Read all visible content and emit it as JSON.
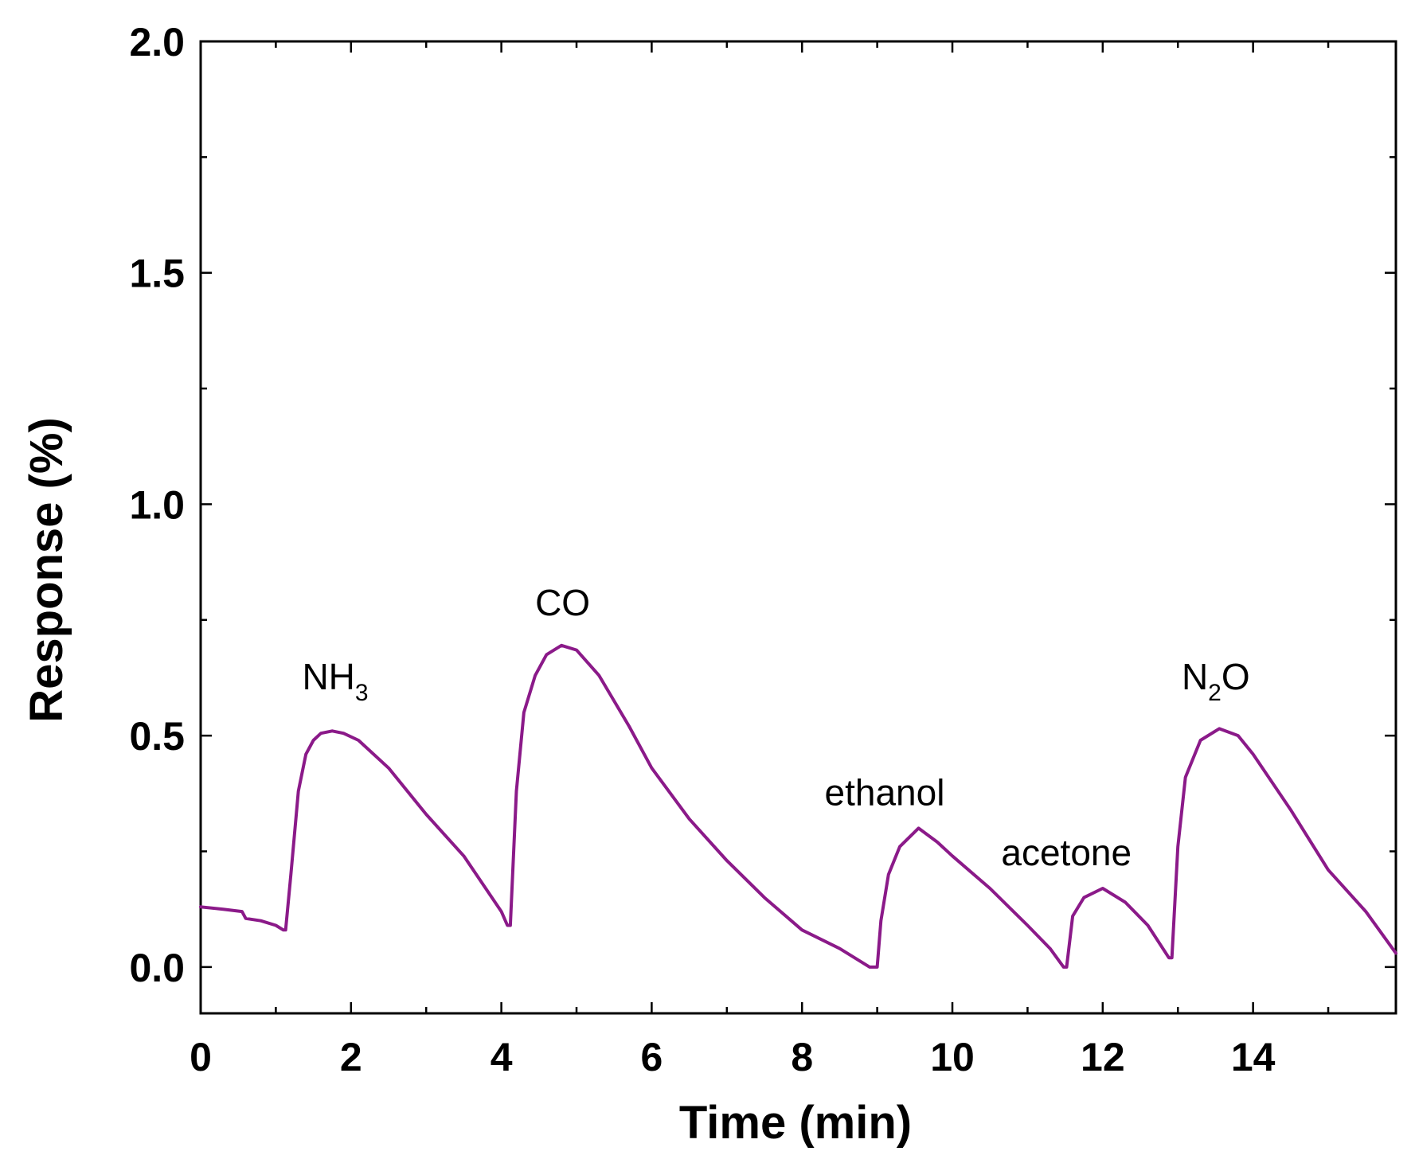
{
  "chart_data": {
    "type": "line",
    "title": "",
    "xlabel": "Time (min)",
    "ylabel": "Response (%)",
    "xlim": [
      0,
      15.9
    ],
    "ylim": [
      -0.1,
      2.0
    ],
    "xticks": [
      0,
      2,
      4,
      6,
      8,
      10,
      12,
      14
    ],
    "xtick_labels": [
      "0",
      "2",
      "4",
      "6",
      "8",
      "10",
      "12",
      "14"
    ],
    "yticks": [
      0.0,
      0.5,
      1.0,
      1.5,
      2.0
    ],
    "ytick_labels": [
      "0.0",
      "0.5",
      "1.0",
      "1.5",
      "2.0"
    ],
    "grid": false,
    "series": [
      {
        "name": "Response",
        "color": "#8B1A89",
        "x": [
          0,
          0.3,
          0.55,
          0.6,
          0.8,
          1.0,
          1.1,
          1.13,
          1.2,
          1.3,
          1.4,
          1.5,
          1.6,
          1.75,
          1.9,
          2.1,
          2.5,
          3.0,
          3.5,
          4.0,
          4.08,
          4.12,
          4.2,
          4.3,
          4.45,
          4.6,
          4.8,
          5.0,
          5.3,
          5.7,
          6.0,
          6.5,
          7.0,
          7.5,
          8.0,
          8.5,
          8.9,
          9.0,
          9.05,
          9.15,
          9.3,
          9.55,
          9.8,
          10.0,
          10.5,
          11.0,
          11.3,
          11.48,
          11.52,
          11.6,
          11.75,
          12.0,
          12.3,
          12.6,
          12.88,
          12.92,
          13.0,
          13.1,
          13.3,
          13.55,
          13.8,
          14.0,
          14.5,
          15.0,
          15.5,
          15.9
        ],
        "y": [
          0.13,
          0.125,
          0.12,
          0.105,
          0.1,
          0.09,
          0.08,
          0.08,
          0.2,
          0.38,
          0.46,
          0.49,
          0.505,
          0.51,
          0.505,
          0.49,
          0.43,
          0.33,
          0.24,
          0.12,
          0.09,
          0.09,
          0.38,
          0.55,
          0.63,
          0.675,
          0.695,
          0.685,
          0.63,
          0.52,
          0.43,
          0.32,
          0.23,
          0.15,
          0.08,
          0.04,
          0.0,
          0.0,
          0.1,
          0.2,
          0.26,
          0.3,
          0.27,
          0.24,
          0.17,
          0.09,
          0.04,
          0.0,
          0.0,
          0.11,
          0.15,
          0.17,
          0.14,
          0.09,
          0.02,
          0.02,
          0.26,
          0.41,
          0.49,
          0.515,
          0.5,
          0.46,
          0.34,
          0.21,
          0.12,
          0.03
        ]
      }
    ],
    "annotations": [
      {
        "text": "NH",
        "sub": "3",
        "x": 1.35,
        "y": 0.6
      },
      {
        "text": "CO",
        "sub": "",
        "x": 4.45,
        "y": 0.76
      },
      {
        "text": "ethanol",
        "sub": "",
        "x": 8.3,
        "y": 0.35
      },
      {
        "text": "acetone",
        "sub": "",
        "x": 10.65,
        "y": 0.22
      },
      {
        "text": "N",
        "sub": "2",
        "tail": "O",
        "x": 13.05,
        "y": 0.6
      }
    ]
  }
}
